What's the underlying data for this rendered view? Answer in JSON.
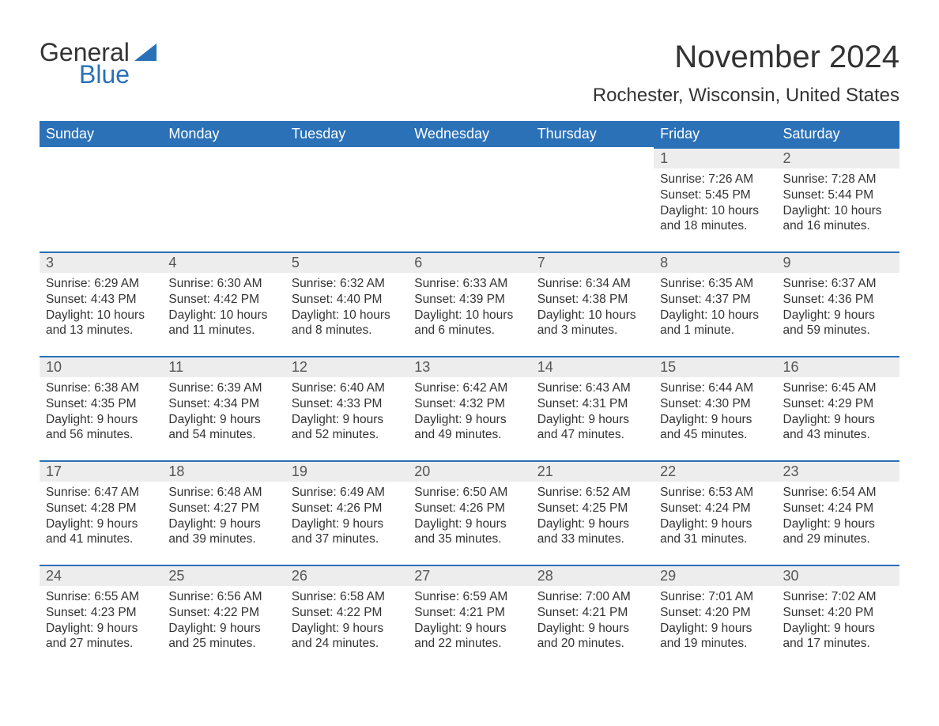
{
  "logo": {
    "brand_a": "General",
    "brand_b": "Blue"
  },
  "title": "November 2024",
  "location": "Rochester, Wisconsin, United States",
  "colors": {
    "header_bg": "#2a71b8",
    "header_text": "#ffffff",
    "day_head_bg": "#ededed",
    "day_head_border": "#2a71b8",
    "body_text": "#333333",
    "page_bg": "#ffffff"
  },
  "weekdays": [
    "Sunday",
    "Monday",
    "Tuesday",
    "Wednesday",
    "Thursday",
    "Friday",
    "Saturday"
  ],
  "labels": {
    "sunrise": "Sunrise:",
    "sunset": "Sunset:",
    "daylight": "Daylight:"
  },
  "weeks": [
    [
      null,
      null,
      null,
      null,
      null,
      {
        "n": "1",
        "sunrise": "7:26 AM",
        "sunset": "5:45 PM",
        "daylight": "10 hours and 18 minutes."
      },
      {
        "n": "2",
        "sunrise": "7:28 AM",
        "sunset": "5:44 PM",
        "daylight": "10 hours and 16 minutes."
      }
    ],
    [
      {
        "n": "3",
        "sunrise": "6:29 AM",
        "sunset": "4:43 PM",
        "daylight": "10 hours and 13 minutes."
      },
      {
        "n": "4",
        "sunrise": "6:30 AM",
        "sunset": "4:42 PM",
        "daylight": "10 hours and 11 minutes."
      },
      {
        "n": "5",
        "sunrise": "6:32 AM",
        "sunset": "4:40 PM",
        "daylight": "10 hours and 8 minutes."
      },
      {
        "n": "6",
        "sunrise": "6:33 AM",
        "sunset": "4:39 PM",
        "daylight": "10 hours and 6 minutes."
      },
      {
        "n": "7",
        "sunrise": "6:34 AM",
        "sunset": "4:38 PM",
        "daylight": "10 hours and 3 minutes."
      },
      {
        "n": "8",
        "sunrise": "6:35 AM",
        "sunset": "4:37 PM",
        "daylight": "10 hours and 1 minute."
      },
      {
        "n": "9",
        "sunrise": "6:37 AM",
        "sunset": "4:36 PM",
        "daylight": "9 hours and 59 minutes."
      }
    ],
    [
      {
        "n": "10",
        "sunrise": "6:38 AM",
        "sunset": "4:35 PM",
        "daylight": "9 hours and 56 minutes."
      },
      {
        "n": "11",
        "sunrise": "6:39 AM",
        "sunset": "4:34 PM",
        "daylight": "9 hours and 54 minutes."
      },
      {
        "n": "12",
        "sunrise": "6:40 AM",
        "sunset": "4:33 PM",
        "daylight": "9 hours and 52 minutes."
      },
      {
        "n": "13",
        "sunrise": "6:42 AM",
        "sunset": "4:32 PM",
        "daylight": "9 hours and 49 minutes."
      },
      {
        "n": "14",
        "sunrise": "6:43 AM",
        "sunset": "4:31 PM",
        "daylight": "9 hours and 47 minutes."
      },
      {
        "n": "15",
        "sunrise": "6:44 AM",
        "sunset": "4:30 PM",
        "daylight": "9 hours and 45 minutes."
      },
      {
        "n": "16",
        "sunrise": "6:45 AM",
        "sunset": "4:29 PM",
        "daylight": "9 hours and 43 minutes."
      }
    ],
    [
      {
        "n": "17",
        "sunrise": "6:47 AM",
        "sunset": "4:28 PM",
        "daylight": "9 hours and 41 minutes."
      },
      {
        "n": "18",
        "sunrise": "6:48 AM",
        "sunset": "4:27 PM",
        "daylight": "9 hours and 39 minutes."
      },
      {
        "n": "19",
        "sunrise": "6:49 AM",
        "sunset": "4:26 PM",
        "daylight": "9 hours and 37 minutes."
      },
      {
        "n": "20",
        "sunrise": "6:50 AM",
        "sunset": "4:26 PM",
        "daylight": "9 hours and 35 minutes."
      },
      {
        "n": "21",
        "sunrise": "6:52 AM",
        "sunset": "4:25 PM",
        "daylight": "9 hours and 33 minutes."
      },
      {
        "n": "22",
        "sunrise": "6:53 AM",
        "sunset": "4:24 PM",
        "daylight": "9 hours and 31 minutes."
      },
      {
        "n": "23",
        "sunrise": "6:54 AM",
        "sunset": "4:24 PM",
        "daylight": "9 hours and 29 minutes."
      }
    ],
    [
      {
        "n": "24",
        "sunrise": "6:55 AM",
        "sunset": "4:23 PM",
        "daylight": "9 hours and 27 minutes."
      },
      {
        "n": "25",
        "sunrise": "6:56 AM",
        "sunset": "4:22 PM",
        "daylight": "9 hours and 25 minutes."
      },
      {
        "n": "26",
        "sunrise": "6:58 AM",
        "sunset": "4:22 PM",
        "daylight": "9 hours and 24 minutes."
      },
      {
        "n": "27",
        "sunrise": "6:59 AM",
        "sunset": "4:21 PM",
        "daylight": "9 hours and 22 minutes."
      },
      {
        "n": "28",
        "sunrise": "7:00 AM",
        "sunset": "4:21 PM",
        "daylight": "9 hours and 20 minutes."
      },
      {
        "n": "29",
        "sunrise": "7:01 AM",
        "sunset": "4:20 PM",
        "daylight": "9 hours and 19 minutes."
      },
      {
        "n": "30",
        "sunrise": "7:02 AM",
        "sunset": "4:20 PM",
        "daylight": "9 hours and 17 minutes."
      }
    ]
  ]
}
